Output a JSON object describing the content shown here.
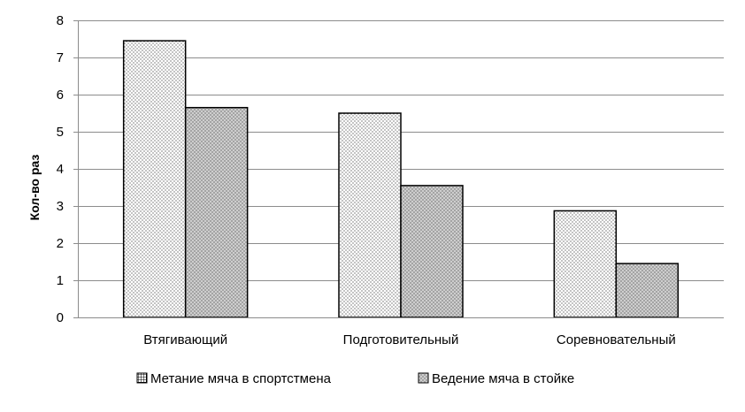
{
  "chart_data": {
    "type": "bar",
    "title": "",
    "xlabel": "",
    "ylabel": "Кол-во раз",
    "categories": [
      "Втягивающий",
      "Подготовительный",
      "Соревновательный"
    ],
    "series": [
      {
        "name": "Метание мяча в спортстмена",
        "values": [
          7.45,
          5.5,
          2.87
        ],
        "color": "#ffffff",
        "pattern": "dots"
      },
      {
        "name": "Ведение мяча в стойке",
        "values": [
          5.65,
          3.55,
          1.45
        ],
        "color": "#d9d9d9",
        "pattern": "crosshatch"
      }
    ],
    "ylim": [
      0,
      8
    ],
    "yticks": [
      0,
      1,
      2,
      3,
      4,
      5,
      6,
      7,
      8
    ],
    "grid": true,
    "legend_position": "bottom"
  }
}
